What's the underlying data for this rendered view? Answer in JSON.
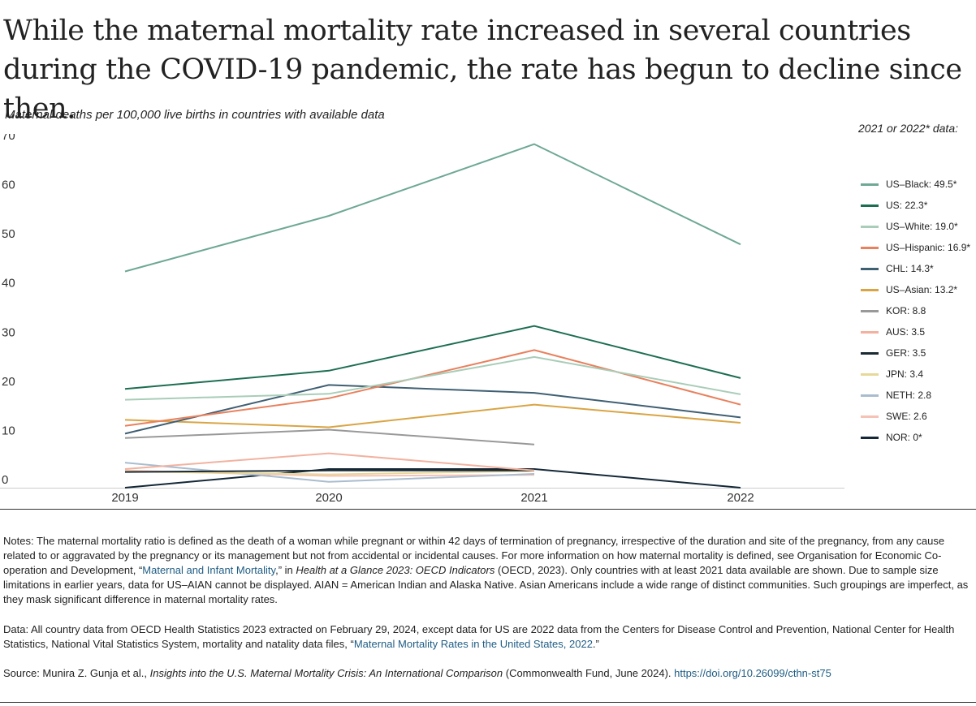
{
  "title": "While the maternal mortality rate increased in several countries during the COVID-19 pandemic, the rate has begun to decline since then.",
  "subtitle": "Maternal deaths per 100,000 live births in countries with available data",
  "legend_title": "2021 or 2022* data:",
  "chart_data": {
    "type": "line",
    "title": "While the maternal mortality rate increased in several countries during the COVID-19 pandemic, the rate has begun to decline since then.",
    "ylabel": "Maternal deaths per 100,000 live births",
    "xlabel": "",
    "ylim": [
      0,
      70
    ],
    "yticks": [
      0,
      10,
      20,
      30,
      40,
      50,
      60,
      70
    ],
    "categories": [
      "2019",
      "2020",
      "2021",
      "2022"
    ],
    "series": [
      {
        "name": "US–Black",
        "legend": "US–Black: 49.5*",
        "color": "#6ea896",
        "values": [
          44.0,
          55.3,
          69.9,
          49.5
        ]
      },
      {
        "name": "US",
        "legend": "US: 22.3*",
        "color": "#1c6e51",
        "values": [
          20.1,
          23.8,
          32.9,
          22.3
        ]
      },
      {
        "name": "US–White",
        "legend": "US–White: 19.0*",
        "color": "#a9cdb8",
        "values": [
          17.9,
          19.1,
          26.6,
          19.0
        ]
      },
      {
        "name": "US–Hispanic",
        "legend": "US–Hispanic: 16.9*",
        "color": "#e8815e",
        "values": [
          12.6,
          18.2,
          28.0,
          16.9
        ]
      },
      {
        "name": "CHL",
        "legend": "CHL: 14.3*",
        "color": "#3f5f73",
        "values": [
          11.0,
          20.9,
          19.3,
          14.3
        ]
      },
      {
        "name": "US–Asian",
        "legend": "US–Asian: 13.2*",
        "color": "#d9a544",
        "values": [
          13.8,
          12.3,
          16.9,
          13.2
        ]
      },
      {
        "name": "KOR",
        "legend": "KOR: 8.8",
        "color": "#999999",
        "values": [
          10.1,
          11.8,
          8.8,
          null
        ]
      },
      {
        "name": "AUS",
        "legend": "AUS: 3.5",
        "color": "#f2b2a0",
        "values": [
          3.8,
          7.0,
          3.5,
          null
        ]
      },
      {
        "name": "GER",
        "legend": "GER: 3.5",
        "color": "#1a2a33",
        "values": [
          3.2,
          3.5,
          3.5,
          null
        ]
      },
      {
        "name": "JPN",
        "legend": "JPN: 3.4",
        "color": "#e8d79a",
        "values": [
          3.3,
          2.7,
          3.4,
          null
        ]
      },
      {
        "name": "NETH",
        "legend": "NETH: 2.8",
        "color": "#a9bccf",
        "values": [
          5.1,
          1.2,
          2.8,
          null
        ]
      },
      {
        "name": "SWE",
        "legend": "SWE: 2.6",
        "color": "#f6c2b6",
        "values": [
          3.5,
          2.4,
          2.6,
          null
        ]
      },
      {
        "name": "NOR",
        "legend": "NOR: 0*",
        "color": "#142838",
        "values": [
          0,
          3.8,
          3.8,
          0
        ]
      }
    ]
  },
  "notes": {
    "text1": "Notes: The maternal mortality ratio is defined as the death of a woman while pregnant or within 42 days of termination of pregnancy, irrespective of the duration and site of the pregnancy, from any cause related to or aggravated by the pregnancy or its management but not from accidental or incidental causes. For more information on how maternal mortality is defined, see Organisation for Economic Co-operation and Development, “",
    "link1": "Maternal and Infant Mortality",
    "text2": ",” in ",
    "italic1": "Health at a Glance 2023: OECD Indicators",
    "text3": " (OECD, 2023). Only countries with at least 2021 data available are shown. Due to sample size limitations in earlier years, data for US–AIAN cannot be displayed. AIAN = American Indian and Alaska Native. Asian Americans include a wide range of distinct communities. Such groupings are imperfect, as they mask significant difference in maternal mortality rates."
  },
  "data_note": {
    "text1": "Data: All country data from OECD Health Statistics 2023 extracted on February 29, 2024, except data for US are 2022 data from the Centers for Disease Control and Prevention, National Center for Health Statistics, National Vital Statistics System, mortality and natality data files, “",
    "link1": "Maternal Mortality Rates in the United States, 2022",
    "text2": ".”"
  },
  "source": {
    "text1": "Source: Munira Z. Gunja et al., ",
    "italic1": "Insights into the U.S. Maternal Mortality Crisis: An International Comparison",
    "text2": " (Commonwealth Fund, June 2024). ",
    "link1": "https://doi.org/10.26099/cthn-st75"
  }
}
